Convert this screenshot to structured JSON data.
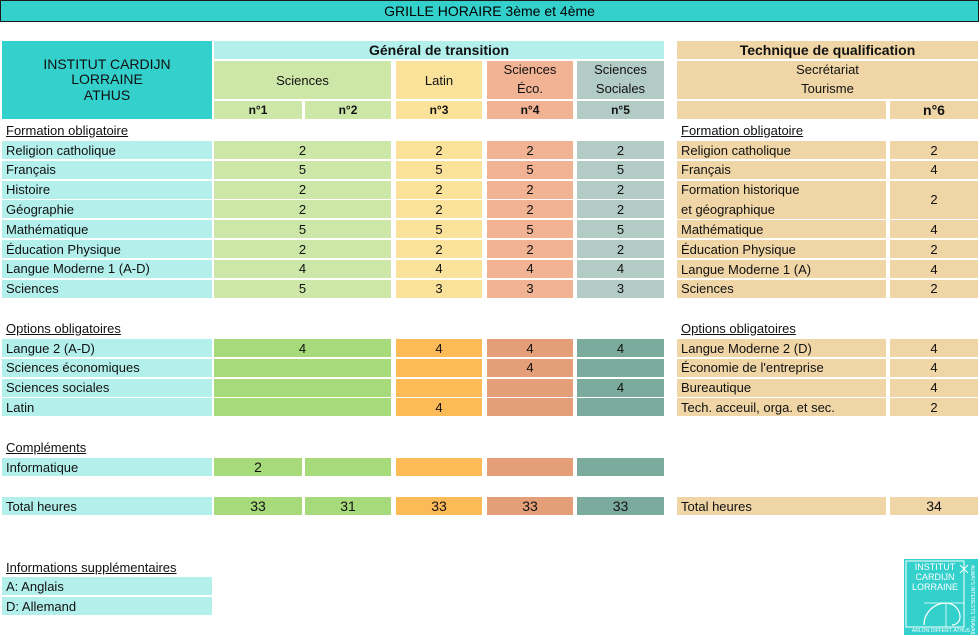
{
  "title": "GRILLE HORAIRE 3ème et 4ème",
  "school": {
    "line1": "INSTITUT CARDIJN",
    "line2": "LORRAINE",
    "line3": "ATHUS"
  },
  "general": {
    "header": "Général de transition",
    "groups": {
      "sciences": "Sciences",
      "latin": "Latin",
      "eco_l1": "Sciences",
      "eco_l2": "Éco.",
      "soc_l1": "Sciences",
      "soc_l2": "Sociales"
    },
    "nums": [
      "n°1",
      "n°2",
      "n°3",
      "n°4",
      "n°5"
    ],
    "sections": {
      "formation": "Formation obligatoire",
      "options": "Options obligatoires",
      "complements": "Compléments"
    },
    "formation_rows": [
      {
        "label": "Religion catholique",
        "sci": "2",
        "lat": "2",
        "eco": "2",
        "soc": "2"
      },
      {
        "label": "Français",
        "sci": "5",
        "lat": "5",
        "eco": "5",
        "soc": "5"
      },
      {
        "label": "Histoire",
        "sci": "2",
        "lat": "2",
        "eco": "2",
        "soc": "2"
      },
      {
        "label": "Géographie",
        "sci": "2",
        "lat": "2",
        "eco": "2",
        "soc": "2"
      },
      {
        "label": "Mathématique",
        "sci": "5",
        "lat": "5",
        "eco": "5",
        "soc": "5"
      },
      {
        "label": "Éducation Physique",
        "sci": "2",
        "lat": "2",
        "eco": "2",
        "soc": "2"
      },
      {
        "label": "Langue Moderne 1 (A-D)",
        "sci": "4",
        "lat": "4",
        "eco": "4",
        "soc": "4"
      },
      {
        "label": "Sciences",
        "sci": "5",
        "lat": "3",
        "eco": "3",
        "soc": "3"
      }
    ],
    "option_rows": [
      {
        "label": "Langue 2 (A-D)",
        "sci": "4",
        "lat": "4",
        "eco": "4",
        "soc": "4"
      },
      {
        "label": "Sciences économiques",
        "sci": "",
        "lat": "",
        "eco": "4",
        "soc": ""
      },
      {
        "label": "Sciences sociales",
        "sci": "",
        "lat": "",
        "eco": "",
        "soc": "4"
      },
      {
        "label": "Latin",
        "sci": "",
        "lat": "4",
        "eco": "",
        "soc": ""
      }
    ],
    "complement_rows": [
      {
        "label": "Informatique",
        "n1": "2"
      }
    ],
    "total": {
      "label": "Total heures",
      "n1": "33",
      "n2": "31",
      "n3": "33",
      "n4": "33",
      "n5": "33"
    }
  },
  "technique": {
    "header": "Technique de qualification",
    "sub1": "Secrétariat",
    "sub2": "Tourisme",
    "num": "n°6",
    "sections": {
      "formation": "Formation obligatoire",
      "options": "Options obligatoires"
    },
    "formation_rows": [
      {
        "label": "Religion catholique",
        "v": "2"
      },
      {
        "label": "Français",
        "v": "4"
      },
      {
        "label": "Formation historique",
        "label2": "et géographique",
        "v": "2"
      },
      {
        "label": "Mathématique",
        "v": "4"
      },
      {
        "label": "Éducation Physique",
        "v": "2"
      },
      {
        "label": "Langue Moderne 1 (A)",
        "v": "4"
      },
      {
        "label": "Sciences",
        "v": "2"
      }
    ],
    "option_rows": [
      {
        "label": "Langue Moderne 2 (D)",
        "v": "4"
      },
      {
        "label": "Économie de l'entreprise",
        "v": "4"
      },
      {
        "label": "Bureautique",
        "v": "4"
      },
      {
        "label": "Tech. acceuil, orga. et sec.",
        "v": "2"
      }
    ],
    "total": {
      "label": "Total heures",
      "v": "34"
    }
  },
  "info": {
    "header": "Informations supplémentaires",
    "items": [
      "A: Anglais",
      "D: Allemand"
    ]
  },
  "logo": {
    "l1": "INSTITUT",
    "l2": "CARDIJN",
    "l3": "LORRAINE",
    "side": "ALWAYS INTERESTS TRAVAIL",
    "bottom": "ARLON·DIFFERT·ATHUS"
  },
  "colors": {
    "teal": "#33d0cc",
    "light_teal": "#b3f0ec",
    "sci_light": "#cce7a8",
    "sci_opt": "#a6da7a",
    "lat_light": "#fbe29a",
    "lat_opt": "#fdbb58",
    "eco_light": "#f1b393",
    "eco_opt": "#e49e78",
    "soc_light": "#b3cbc5",
    "soc_opt": "#7bab9d",
    "tech": "#f0d6a6"
  }
}
